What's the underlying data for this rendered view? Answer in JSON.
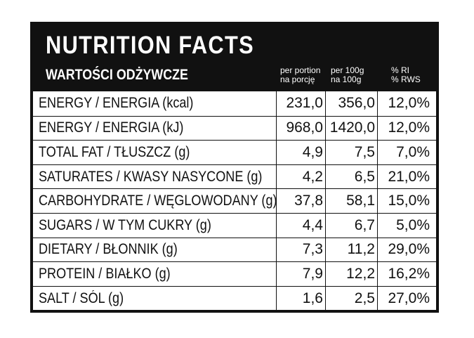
{
  "header": {
    "title": "NUTRITION FACTS",
    "subtitle": "WARTOŚCI ODŻYWCZE",
    "columns": [
      {
        "line1": "per portion",
        "line2": "na porcję"
      },
      {
        "line1": "per 100g",
        "line2": "na 100g"
      },
      {
        "line1": "% RI",
        "line2": "% RWS"
      }
    ]
  },
  "rows": [
    {
      "name": "ENERGY / ENERGIA (kcal)",
      "portion": "231,0",
      "per100": "356,0",
      "ri": "12,0%"
    },
    {
      "name": "ENERGY / ENERGIA (kJ)",
      "portion": "968,0",
      "per100": "1420,0",
      "ri": "12,0%"
    },
    {
      "name": "TOTAL FAT / TŁUSZCZ (g)",
      "portion": "4,9",
      "per100": "7,5",
      "ri": "7,0%"
    },
    {
      "name": "SATURATES / KWASY NASYCONE (g)",
      "portion": "4,2",
      "per100": "6,5",
      "ri": "21,0%"
    },
    {
      "name": "CARBOHYDRATE / WĘGLOWODANY (g)",
      "portion": "37,8",
      "per100": "58,1",
      "ri": "15,0%"
    },
    {
      "name": "SUGARS / W TYM CUKRY (g)",
      "portion": "4,4",
      "per100": "6,7",
      "ri": "5,0%"
    },
    {
      "name": "DIETARY / BŁONNIK (g)",
      "portion": "7,3",
      "per100": "11,2",
      "ri": "29,0%"
    },
    {
      "name": "PROTEIN / BIAŁKO (g)",
      "portion": "7,9",
      "per100": "12,2",
      "ri": "16,2%"
    },
    {
      "name": "SALT / SÓL (g)",
      "portion": "1,6",
      "per100": "2,5",
      "ri": "27,0%"
    }
  ]
}
